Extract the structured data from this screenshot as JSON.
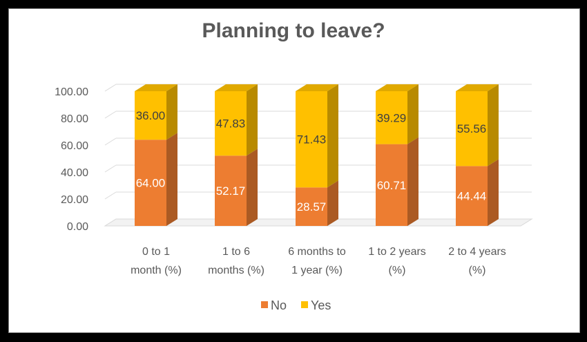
{
  "chart_data": {
    "type": "bar",
    "stacked": true,
    "style": "3d-column",
    "title": "Planning  to leave?",
    "categories": [
      [
        "0 to 1",
        "month (%)"
      ],
      [
        "1 to 6",
        "months (%)"
      ],
      [
        "6 months to",
        "1 year (%)"
      ],
      [
        "1 to 2  years",
        "(%)"
      ],
      [
        "2 to 4 years",
        "(%)"
      ]
    ],
    "series": [
      {
        "name": "No",
        "color": "#ed7d31",
        "values": [
          64.0,
          52.17,
          28.57,
          60.71,
          44.44
        ]
      },
      {
        "name": "Yes",
        "color": "#ffc000",
        "values": [
          36.0,
          47.83,
          71.43,
          39.29,
          55.56
        ]
      }
    ],
    "ylim": [
      0,
      100
    ],
    "yticks": [
      "0.00",
      "20.00",
      "40.00",
      "60.00",
      "80.00",
      "100.00"
    ],
    "grid": true,
    "legend": "bottom"
  }
}
